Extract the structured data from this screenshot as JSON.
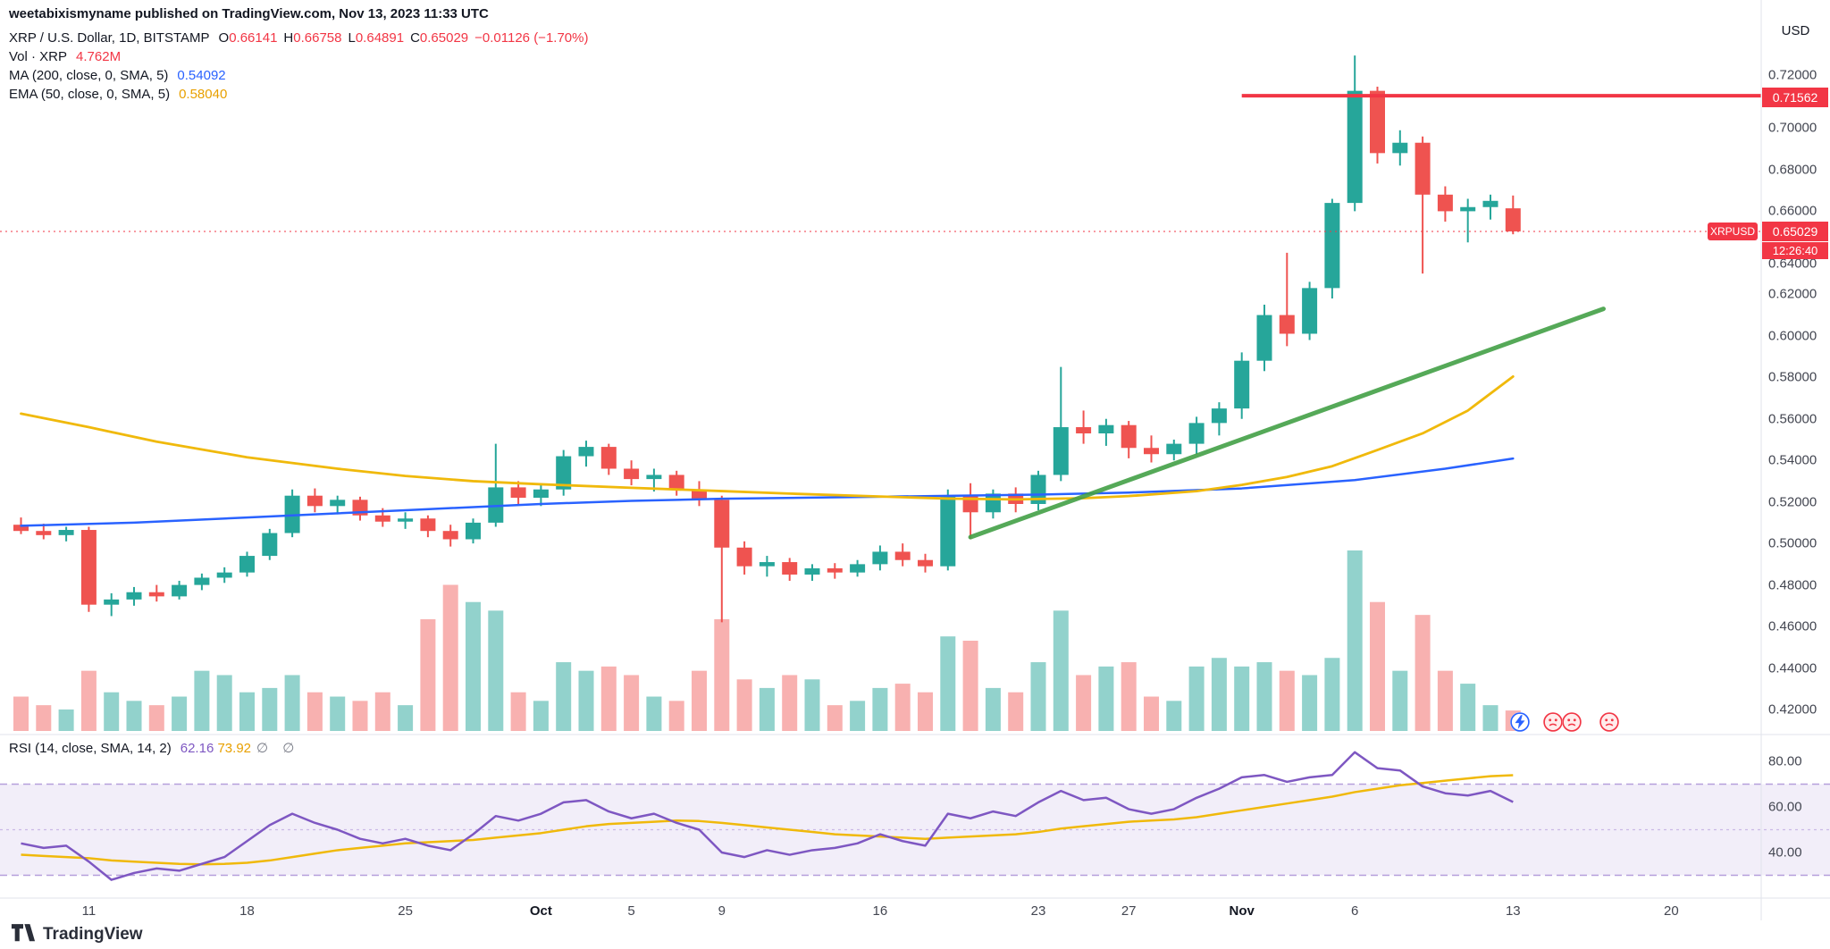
{
  "header": {
    "author": "weetabixismyname",
    "published": " published on TradingView.com, Nov 13, 2023 11:33 UTC"
  },
  "symbol_legend": {
    "title": "XRP / U.S. Dollar, 1D, BITSTAMP",
    "ohlc": [
      {
        "k": "O",
        "v": "0.66141"
      },
      {
        "k": "H",
        "v": "0.66758"
      },
      {
        "k": "L",
        "v": "0.64891"
      },
      {
        "k": "C",
        "v": "0.65029"
      }
    ],
    "change": "−0.01126 (−1.70%)",
    "vol_label": "Vol · XRP",
    "vol_value": "4.762M",
    "ma_label": "MA (200, close, 0, SMA, 5)",
    "ma_value": "0.54092",
    "ema_label": "EMA (50, close, 0, SMA, 5)",
    "ema_value": "0.58040"
  },
  "rsi_legend": {
    "label": "RSI (14, close, SMA, 14, 2)",
    "value1": "62.16",
    "value2": "73.92",
    "empty": "∅ ∅"
  },
  "axis": {
    "currency": "USD",
    "price_labels": [
      "0.72000",
      "0.70000",
      "0.68000",
      "0.66000",
      "0.64000",
      "0.62000",
      "0.60000",
      "0.58000",
      "0.56000",
      "0.54000",
      "0.52000",
      "0.50000",
      "0.48000",
      "0.46000",
      "0.44000",
      "0.42000"
    ],
    "rsi_labels": [
      "80.00",
      "60.00",
      "40.00"
    ],
    "time_labels": [
      {
        "label": "11",
        "i": 3
      },
      {
        "label": "18",
        "i": 10
      },
      {
        "label": "25",
        "i": 17
      },
      {
        "label": "Oct",
        "i": 23,
        "major": true
      },
      {
        "label": "5",
        "i": 27
      },
      {
        "label": "9",
        "i": 31
      },
      {
        "label": "16",
        "i": 38
      },
      {
        "label": "23",
        "i": 45
      },
      {
        "label": "27",
        "i": 49
      },
      {
        "label": "Nov",
        "i": 54,
        "major": true
      },
      {
        "label": "6",
        "i": 59
      },
      {
        "label": "13",
        "i": 66
      },
      {
        "label": "20",
        "i": 73
      }
    ],
    "resistance_label": "0.71562",
    "symbol_badge": "XRPUSD",
    "price_line_label": "0.65029",
    "countdown": "12:26:40"
  },
  "footer": {
    "brand": "TradingView"
  },
  "chart_data": {
    "type": "candlestick+volume+rsi",
    "symbol": "XRP/USD",
    "interval": "1D",
    "exchange": "BITSTAMP",
    "start_date": "2023-09-08",
    "end_date": "2023-11-13",
    "price_range": [
      0.42,
      0.72
    ],
    "volumes_unit": "M",
    "last_price": 0.65029,
    "resistance": {
      "price": 0.71562,
      "from_i": 54
    },
    "trendline": {
      "from": [
        42,
        0.503
      ],
      "to": [
        70,
        0.613
      ]
    },
    "candles": [
      [
        0.509,
        0.5125,
        0.5045,
        0.506
      ],
      [
        0.506,
        0.5095,
        0.502,
        0.504
      ],
      [
        0.504,
        0.508,
        0.501,
        0.5065
      ],
      [
        0.5065,
        0.508,
        0.467,
        0.4705
      ],
      [
        0.4705,
        0.476,
        0.465,
        0.473
      ],
      [
        0.473,
        0.479,
        0.47,
        0.4765
      ],
      [
        0.4765,
        0.48,
        0.472,
        0.4745
      ],
      [
        0.4745,
        0.482,
        0.473,
        0.48
      ],
      [
        0.48,
        0.4855,
        0.4775,
        0.4835
      ],
      [
        0.4835,
        0.4885,
        0.481,
        0.486
      ],
      [
        0.486,
        0.496,
        0.484,
        0.494
      ],
      [
        0.494,
        0.507,
        0.492,
        0.505
      ],
      [
        0.505,
        0.526,
        0.503,
        0.523
      ],
      [
        0.523,
        0.5265,
        0.515,
        0.518
      ],
      [
        0.518,
        0.523,
        0.514,
        0.521
      ],
      [
        0.521,
        0.5225,
        0.511,
        0.5135
      ],
      [
        0.5135,
        0.517,
        0.508,
        0.5105
      ],
      [
        0.5105,
        0.515,
        0.507,
        0.512
      ],
      [
        0.512,
        0.5135,
        0.503,
        0.506
      ],
      [
        0.506,
        0.509,
        0.4985,
        0.502
      ],
      [
        0.502,
        0.512,
        0.5,
        0.51
      ],
      [
        0.51,
        0.548,
        0.508,
        0.527
      ],
      [
        0.527,
        0.53,
        0.519,
        0.522
      ],
      [
        0.522,
        0.529,
        0.518,
        0.526
      ],
      [
        0.526,
        0.545,
        0.523,
        0.542
      ],
      [
        0.542,
        0.5495,
        0.537,
        0.5465
      ],
      [
        0.5465,
        0.548,
        0.533,
        0.536
      ],
      [
        0.536,
        0.54,
        0.528,
        0.531
      ],
      [
        0.531,
        0.536,
        0.525,
        0.533
      ],
      [
        0.533,
        0.535,
        0.523,
        0.526
      ],
      [
        0.526,
        0.53,
        0.518,
        0.521
      ],
      [
        0.521,
        0.523,
        0.462,
        0.498
      ],
      [
        0.498,
        0.501,
        0.485,
        0.489
      ],
      [
        0.489,
        0.494,
        0.484,
        0.491
      ],
      [
        0.491,
        0.493,
        0.482,
        0.485
      ],
      [
        0.485,
        0.49,
        0.482,
        0.488
      ],
      [
        0.488,
        0.4905,
        0.483,
        0.486
      ],
      [
        0.486,
        0.492,
        0.484,
        0.49
      ],
      [
        0.49,
        0.499,
        0.487,
        0.496
      ],
      [
        0.496,
        0.5,
        0.489,
        0.492
      ],
      [
        0.492,
        0.495,
        0.486,
        0.489
      ],
      [
        0.489,
        0.526,
        0.487,
        0.523
      ],
      [
        0.523,
        0.529,
        0.502,
        0.515
      ],
      [
        0.515,
        0.526,
        0.512,
        0.524
      ],
      [
        0.524,
        0.527,
        0.515,
        0.519
      ],
      [
        0.519,
        0.535,
        0.516,
        0.533
      ],
      [
        0.533,
        0.585,
        0.53,
        0.556
      ],
      [
        0.556,
        0.564,
        0.548,
        0.553
      ],
      [
        0.553,
        0.56,
        0.547,
        0.557
      ],
      [
        0.557,
        0.559,
        0.541,
        0.546
      ],
      [
        0.546,
        0.552,
        0.539,
        0.543
      ],
      [
        0.543,
        0.55,
        0.54,
        0.548
      ],
      [
        0.548,
        0.561,
        0.543,
        0.558
      ],
      [
        0.558,
        0.568,
        0.552,
        0.565
      ],
      [
        0.565,
        0.592,
        0.56,
        0.588
      ],
      [
        0.588,
        0.615,
        0.583,
        0.61
      ],
      [
        0.61,
        0.64,
        0.595,
        0.601
      ],
      [
        0.601,
        0.626,
        0.598,
        0.623
      ],
      [
        0.623,
        0.666,
        0.618,
        0.664
      ],
      [
        0.664,
        0.735,
        0.66,
        0.718
      ],
      [
        0.718,
        0.72,
        0.683,
        0.688
      ],
      [
        0.688,
        0.699,
        0.682,
        0.693
      ],
      [
        0.693,
        0.696,
        0.63,
        0.668
      ],
      [
        0.668,
        0.672,
        0.655,
        0.66
      ],
      [
        0.66,
        0.666,
        0.645,
        0.662
      ],
      [
        0.662,
        0.668,
        0.656,
        0.665
      ],
      [
        0.66141,
        0.66758,
        0.64891,
        0.65029
      ]
    ],
    "volumes": [
      8,
      6,
      5,
      14,
      9,
      7,
      6,
      8,
      14,
      13,
      9,
      10,
      13,
      9,
      8,
      7,
      9,
      6,
      26,
      34,
      30,
      28,
      9,
      7,
      16,
      14,
      15,
      13,
      8,
      7,
      14,
      26,
      12,
      10,
      13,
      12,
      6,
      7,
      10,
      11,
      9,
      22,
      21,
      10,
      9,
      16,
      28,
      13,
      15,
      16,
      8,
      7,
      15,
      17,
      15,
      16,
      14,
      13,
      17,
      42,
      30,
      14,
      27,
      14,
      11,
      6,
      4.762
    ],
    "ma200": [
      [
        0,
        0.5085
      ],
      [
        5,
        0.51
      ],
      [
        10,
        0.5125
      ],
      [
        17,
        0.516
      ],
      [
        23,
        0.519
      ],
      [
        27,
        0.5205
      ],
      [
        31,
        0.5215
      ],
      [
        38,
        0.5225
      ],
      [
        45,
        0.5235
      ],
      [
        49,
        0.5245
      ],
      [
        54,
        0.5265
      ],
      [
        59,
        0.5305
      ],
      [
        63,
        0.536
      ],
      [
        66,
        0.5409
      ]
    ],
    "ema50": [
      [
        0,
        0.5625
      ],
      [
        3,
        0.556
      ],
      [
        6,
        0.549
      ],
      [
        10,
        0.5415
      ],
      [
        14,
        0.536
      ],
      [
        17,
        0.5325
      ],
      [
        20,
        0.53
      ],
      [
        23,
        0.5285
      ],
      [
        27,
        0.5268
      ],
      [
        31,
        0.5252
      ],
      [
        34,
        0.524
      ],
      [
        38,
        0.5226
      ],
      [
        41,
        0.5216
      ],
      [
        44,
        0.5212
      ],
      [
        47,
        0.5218
      ],
      [
        49,
        0.5228
      ],
      [
        52,
        0.5252
      ],
      [
        54,
        0.5282
      ],
      [
        56,
        0.532
      ],
      [
        58,
        0.5372
      ],
      [
        60,
        0.545
      ],
      [
        62,
        0.553
      ],
      [
        64,
        0.564
      ],
      [
        66,
        0.5804
      ]
    ],
    "rsi": [
      44,
      42,
      43,
      36,
      28,
      31,
      33,
      32,
      35,
      38,
      45,
      52,
      57,
      53,
      50,
      46,
      44,
      46,
      43,
      41,
      48,
      56,
      54,
      57,
      62,
      63,
      58,
      55,
      57,
      53,
      50,
      40,
      38,
      41,
      39,
      41,
      42,
      44,
      48,
      45,
      43,
      57,
      55,
      58,
      56,
      62,
      67,
      63,
      64,
      59,
      57,
      59,
      64,
      68,
      73,
      74,
      71,
      73,
      74,
      84,
      77,
      76,
      69,
      66,
      65,
      67,
      62.16
    ],
    "rsi_ma": [
      39,
      38.5,
      38,
      37.5,
      36.5,
      36,
      35.5,
      35,
      34.8,
      35,
      35.5,
      36.5,
      38,
      39.5,
      41,
      42,
      43,
      44,
      44.5,
      45,
      45.5,
      46.5,
      47.5,
      48.5,
      50,
      51.5,
      52.5,
      53,
      53.5,
      54,
      53.8,
      53,
      52,
      51,
      50,
      49,
      48,
      47.5,
      47,
      46.5,
      46,
      46.5,
      47,
      47.5,
      48,
      49,
      50.5,
      51.5,
      52.5,
      53.5,
      54,
      54.5,
      55.5,
      57,
      58.5,
      60,
      61.5,
      63,
      64.5,
      66.5,
      68,
      69.5,
      70.5,
      71.5,
      72.5,
      73.5,
      73.92
    ],
    "rsi_bands": [
      70,
      50,
      30
    ],
    "rsi_axis_visible": [
      80,
      60,
      40
    ],
    "colors": {
      "up": "#26a69a",
      "down": "#ef5350",
      "vol_up": "rgba(38,166,154,0.5)",
      "vol_down": "rgba(239,83,80,0.45)",
      "ma200": "#2962ff",
      "ema50": "#f0b90b",
      "trend": "#43a047",
      "level": "#f23645",
      "rsi": "#7e57c2",
      "rsi_ma": "#f0b90b",
      "band_fill": "rgba(126,87,194,0.10)",
      "band_line": "rgba(126,87,194,0.55)",
      "band_mid": "rgba(126,87,194,0.35)",
      "grid": "#e0e3eb"
    }
  }
}
